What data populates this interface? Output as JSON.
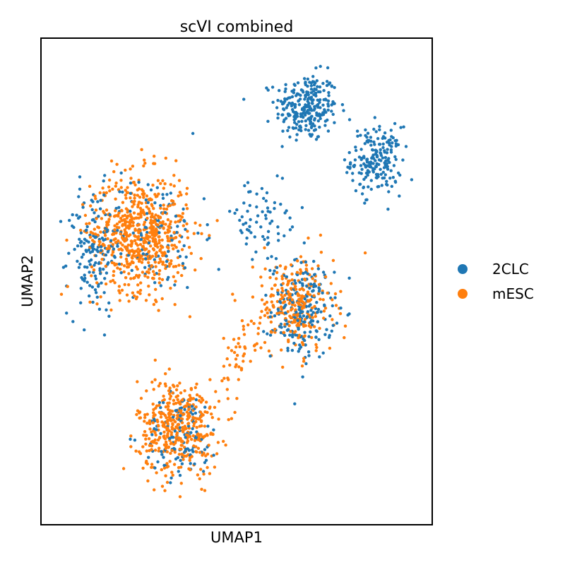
{
  "chart_data": {
    "type": "scatter",
    "title": "scVI combined",
    "xlabel": "UMAP1",
    "ylabel": "UMAP2",
    "xlim": [
      0,
      10
    ],
    "ylim": [
      0,
      10
    ],
    "grid": false,
    "ticks": false,
    "legend_position": "right",
    "series": [
      {
        "name": "2CLC",
        "color": "#1f77b4",
        "regions": [
          {
            "x": 6.8,
            "y": 8.6,
            "sx": 0.8,
            "sy": 0.7,
            "n": 260
          },
          {
            "x": 8.6,
            "y": 7.5,
            "sx": 0.65,
            "sy": 0.7,
            "n": 200
          },
          {
            "x": 6.7,
            "y": 4.4,
            "sx": 0.8,
            "sy": 1.0,
            "n": 220
          },
          {
            "x": 5.6,
            "y": 6.2,
            "sx": 1.2,
            "sy": 0.9,
            "n": 70
          },
          {
            "x": 1.3,
            "y": 5.6,
            "sx": 0.65,
            "sy": 1.3,
            "n": 140
          },
          {
            "x": 2.8,
            "y": 6.0,
            "sx": 1.3,
            "sy": 1.2,
            "n": 130
          },
          {
            "x": 3.6,
            "y": 1.8,
            "sx": 1.0,
            "sy": 0.9,
            "n": 120
          }
        ]
      },
      {
        "name": "mESC",
        "color": "#ff7f0e",
        "regions": [
          {
            "x": 2.5,
            "y": 6.0,
            "sx": 1.25,
            "sy": 1.2,
            "n": 650
          },
          {
            "x": 3.5,
            "y": 2.0,
            "sx": 1.05,
            "sy": 1.0,
            "n": 420
          },
          {
            "x": 6.5,
            "y": 4.5,
            "sx": 1.0,
            "sy": 1.0,
            "n": 260
          },
          {
            "x": 5.0,
            "y": 3.5,
            "sx": 0.55,
            "sy": 0.7,
            "n": 40
          }
        ]
      }
    ]
  }
}
